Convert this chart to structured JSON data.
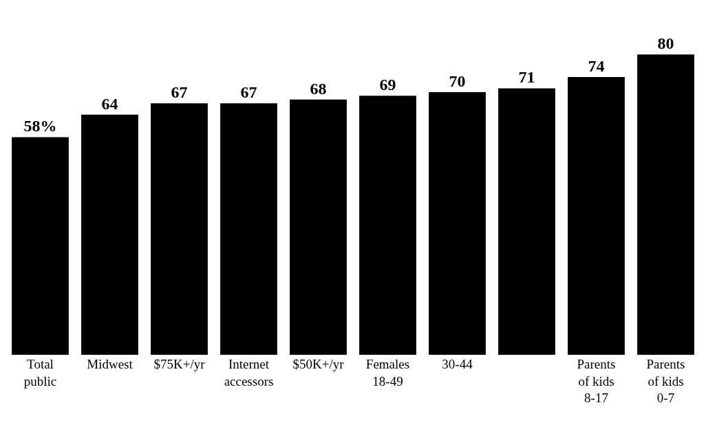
{
  "chart_data": {
    "type": "bar",
    "categories": [
      "Total\npublic",
      "Midwest",
      "$75K+/yr",
      "Internet\naccessors",
      "$50K+/yr",
      "Females\n18-49",
      "30-44",
      null,
      "Parents\nof kids\n8-17",
      "Parents\nof kids\n0-7"
    ],
    "values": [
      58,
      64,
      67,
      67,
      68,
      69,
      70,
      71,
      74,
      80
    ],
    "value_labels": [
      "58%",
      "64",
      "67",
      "67",
      "68",
      "69",
      "70",
      "71",
      "74",
      "80"
    ],
    "color": "#000000"
  }
}
